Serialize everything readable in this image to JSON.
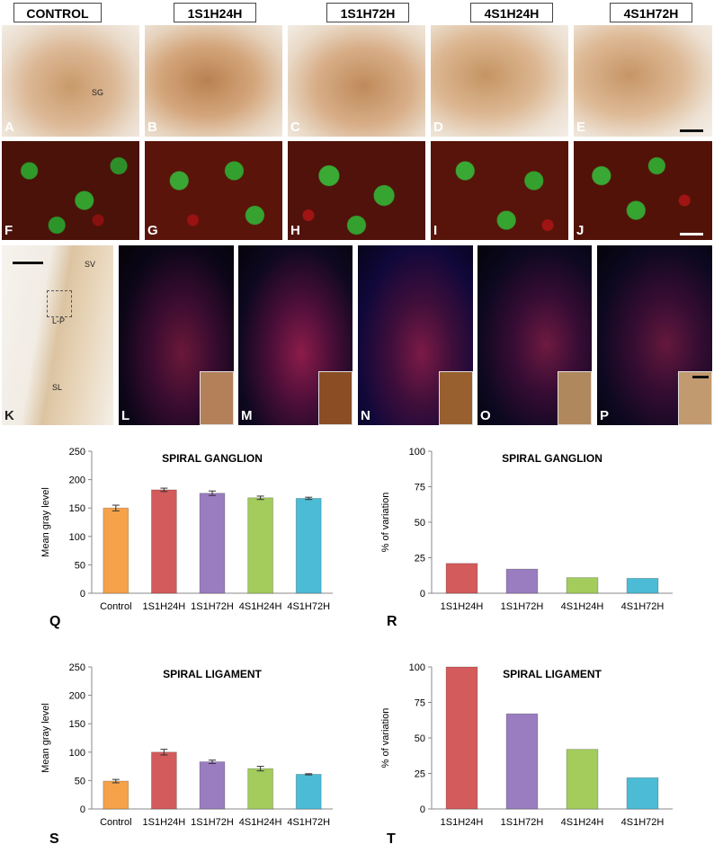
{
  "column_headers": [
    "CONTROL",
    "1S1H24H",
    "1S1H72H",
    "4S1H24H",
    "4S1H72H"
  ],
  "row1_labels": [
    "A",
    "B",
    "C",
    "D",
    "E"
  ],
  "row2_labels": [
    "F",
    "G",
    "H",
    "I",
    "J"
  ],
  "row3_labels": [
    "K",
    "L",
    "M",
    "N",
    "O",
    "P"
  ],
  "micrograph_text": {
    "sg": "SG",
    "sv": "SV",
    "lp": "L-P",
    "sl": "SL"
  },
  "chart_labels": [
    "Q",
    "R",
    "S",
    "T"
  ],
  "colors": {
    "control": "#f6a24a",
    "1S1H24H": "#d45b5b",
    "1S1H72H": "#9a7cc0",
    "4S1H24H": "#a3cc5c",
    "4S1H72H": "#4cbcd6"
  },
  "chart_data": [
    {
      "type": "bar",
      "title": "SPIRAL GANGLION",
      "ylabel": "Mean gray level",
      "categories": [
        "Control",
        "1S1H24H",
        "1S1H72H",
        "4S1H24H",
        "4S1H72H"
      ],
      "values": [
        150,
        182,
        176,
        168,
        167
      ],
      "errors": [
        5,
        3,
        4,
        3,
        2
      ],
      "ylim": [
        0,
        250
      ],
      "yticks": [
        "0",
        "50",
        "100",
        "150",
        "200",
        "250"
      ]
    },
    {
      "type": "bar",
      "title": "SPIRAL GANGLION",
      "ylabel": "% of variation",
      "categories": [
        "1S1H24H",
        "1S1H72H",
        "4S1H24H",
        "4S1H72H"
      ],
      "values": [
        21,
        17,
        11,
        10.5
      ],
      "ylim": [
        0,
        100
      ],
      "yticks": [
        "0",
        "25",
        "50",
        "75",
        "100"
      ]
    },
    {
      "type": "bar",
      "title": "SPIRAL LIGAMENT",
      "ylabel": "Mean gray level",
      "categories": [
        "Control",
        "1S1H24H",
        "1S1H72H",
        "4S1H24H",
        "4S1H72H"
      ],
      "values": [
        49,
        100,
        83,
        71,
        61
      ],
      "errors": [
        3,
        5,
        3,
        4,
        1
      ],
      "ylim": [
        0,
        250
      ],
      "yticks": [
        "0",
        "50",
        "100",
        "150",
        "200",
        "250"
      ]
    },
    {
      "type": "bar",
      "title": "SPIRAL LIGAMENT",
      "ylabel": "% of variation",
      "categories": [
        "1S1H24H",
        "1S1H72H",
        "4S1H24H",
        "4S1H72H"
      ],
      "values": [
        100,
        67,
        42,
        22
      ],
      "ylim": [
        0,
        100
      ],
      "yticks": [
        "0",
        "25",
        "50",
        "75",
        "100"
      ]
    }
  ]
}
